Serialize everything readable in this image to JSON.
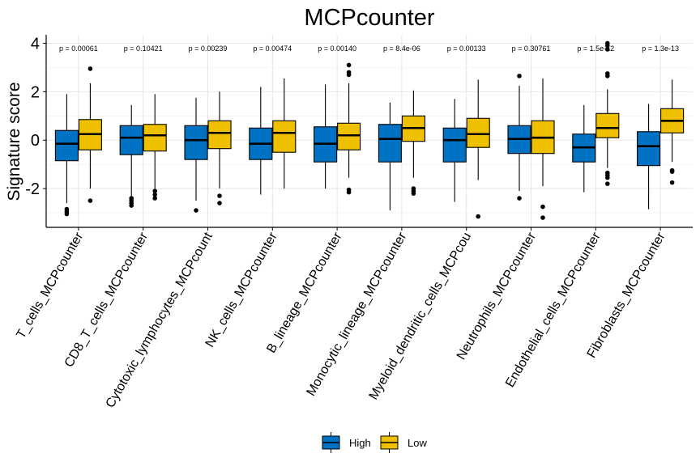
{
  "chart_data": {
    "type": "boxplot",
    "title": "MCPcounter",
    "ylabel": "Signature score",
    "xlabel": "",
    "ylim": [
      -3.6,
      4.35
    ],
    "yticks": [
      -2,
      0,
      2,
      4
    ],
    "grid": true,
    "legend_position": "bottom",
    "categories": [
      "T_cells_MCPcounter",
      "CD8_T_cells_MCPcounter",
      "Cytotoxic_lymphocytes_MCPcount",
      "NK_cells_MCPcounter",
      "B_lineage_MCPcounter",
      "Monocytic_lineage_MCPcounter",
      "Myeloid_dendritic_cells_MCPcou",
      "Neutrophils_MCPcounter",
      "Endothelial_cells_MCPcounter",
      "Fibroblasts_MCPcounter"
    ],
    "pvalues": [
      "p = 0.00061",
      "p = 0.10421",
      "p = 0.00239",
      "p = 0.00474",
      "p = 0.00140",
      "p = 8.4e-06",
      "p = 0.00133",
      "p = 0.30761",
      "p = 1.5e-12",
      "p = 1.3e-13"
    ],
    "series": [
      {
        "name": "High",
        "color": "#0072C3",
        "boxes": [
          {
            "whislo": -2.6,
            "q1": -0.85,
            "med": -0.15,
            "q3": 0.4,
            "whishi": 1.9,
            "fliers": [
              -2.85,
              -2.95,
              -3.05
            ]
          },
          {
            "whislo": -2.4,
            "q1": -0.6,
            "med": 0.1,
            "q3": 0.6,
            "whishi": 1.45,
            "fliers": [
              -2.4,
              -2.5,
              -2.6,
              -2.7
            ]
          },
          {
            "whislo": -2.5,
            "q1": -0.8,
            "med": 0.0,
            "q3": 0.6,
            "whishi": 1.75,
            "fliers": [
              -2.9
            ]
          },
          {
            "whislo": -2.25,
            "q1": -0.8,
            "med": -0.15,
            "q3": 0.5,
            "whishi": 2.2,
            "fliers": []
          },
          {
            "whislo": -2.0,
            "q1": -0.9,
            "med": -0.15,
            "q3": 0.55,
            "whishi": 2.3,
            "fliers": []
          },
          {
            "whislo": -2.9,
            "q1": -0.9,
            "med": 0.05,
            "q3": 0.65,
            "whishi": 1.55,
            "fliers": []
          },
          {
            "whislo": -2.55,
            "q1": -0.9,
            "med": 0.0,
            "q3": 0.5,
            "whishi": 1.7,
            "fliers": []
          },
          {
            "whislo": -2.1,
            "q1": -0.55,
            "med": 0.05,
            "q3": 0.6,
            "whishi": 2.25,
            "fliers": [
              -2.4,
              2.65
            ]
          },
          {
            "whislo": -2.15,
            "q1": -0.9,
            "med": -0.3,
            "q3": 0.25,
            "whishi": 1.45,
            "fliers": []
          },
          {
            "whislo": -2.85,
            "q1": -1.05,
            "med": -0.25,
            "q3": 0.35,
            "whishi": 1.5,
            "fliers": []
          }
        ]
      },
      {
        "name": "Low",
        "color": "#EEC000",
        "boxes": [
          {
            "whislo": -2.0,
            "q1": -0.4,
            "med": 0.25,
            "q3": 0.85,
            "whishi": 2.35,
            "fliers": [
              -2.5,
              2.95
            ]
          },
          {
            "whislo": -2.0,
            "q1": -0.45,
            "med": 0.2,
            "q3": 0.65,
            "whishi": 1.9,
            "fliers": [
              -2.1,
              -2.25,
              -2.4
            ]
          },
          {
            "whislo": -2.0,
            "q1": -0.35,
            "med": 0.3,
            "q3": 0.8,
            "whishi": 2.0,
            "fliers": [
              -2.3,
              -2.6
            ]
          },
          {
            "whislo": -2.0,
            "q1": -0.5,
            "med": 0.3,
            "q3": 0.8,
            "whishi": 2.55,
            "fliers": []
          },
          {
            "whislo": -1.55,
            "q1": -0.4,
            "med": 0.2,
            "q3": 0.7,
            "whishi": 2.35,
            "fliers": [
              -2.05,
              -2.15,
              2.7,
              2.8,
              3.1
            ]
          },
          {
            "whislo": -1.55,
            "q1": -0.05,
            "med": 0.5,
            "q3": 1.0,
            "whishi": 2.05,
            "fliers": [
              -2.0,
              -2.1,
              -2.2
            ]
          },
          {
            "whislo": -1.65,
            "q1": -0.3,
            "med": 0.25,
            "q3": 0.9,
            "whishi": 2.5,
            "fliers": [
              -3.15
            ]
          },
          {
            "whislo": -1.9,
            "q1": -0.55,
            "med": 0.1,
            "q3": 0.8,
            "whishi": 2.55,
            "fliers": [
              -2.75,
              -3.2
            ]
          },
          {
            "whislo": -1.15,
            "q1": 0.1,
            "med": 0.5,
            "q3": 1.1,
            "whishi": 2.1,
            "fliers": [
              -1.35,
              -1.45,
              -1.55,
              -1.8,
              2.65,
              2.75,
              3.75,
              3.9,
              4.0
            ]
          },
          {
            "whislo": -0.9,
            "q1": 0.3,
            "med": 0.8,
            "q3": 1.3,
            "whishi": 2.5,
            "fliers": [
              -1.25,
              -1.3,
              -1.75
            ]
          }
        ]
      }
    ]
  }
}
